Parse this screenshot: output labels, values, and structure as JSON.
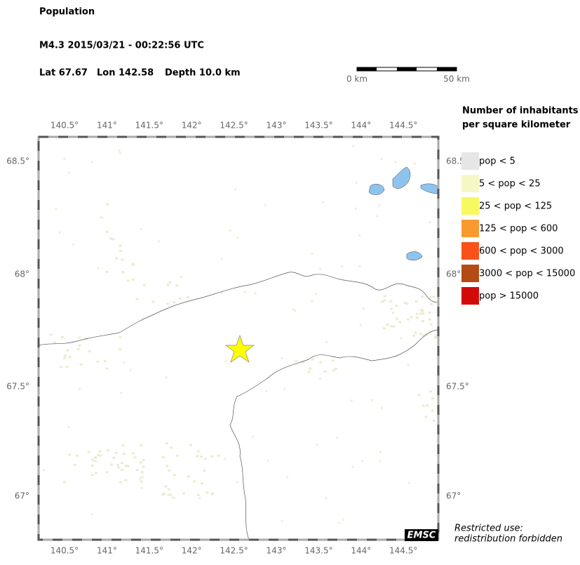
{
  "header": {
    "title": "Population",
    "event": "M4.3  2015/03/21 - 00:22:56 UTC",
    "lat": "Lat 67.67",
    "lon": "Lon 142.58",
    "depth": "Depth  10.0 km"
  },
  "scale_bar": {
    "start": "0 km",
    "end": "50 km"
  },
  "map": {
    "lon_ticks": [
      "140.5°",
      "141°",
      "141.5°",
      "142°",
      "142.5°",
      "143°",
      "143.5°",
      "144°",
      "144.5°"
    ],
    "lat_ticks": [
      "68.5°",
      "68°",
      "67.5°",
      "67°"
    ],
    "logo": "EMSC"
  },
  "legend": {
    "title_lines": [
      "Number of inhabitants",
      "per square kilometer"
    ],
    "items": [
      {
        "label": "pop < 5",
        "color": "#e6e6e6"
      },
      {
        "label": "5 < pop < 25",
        "color": "#f7f7c6"
      },
      {
        "label": "25 < pop < 125",
        "color": "#f8f860"
      },
      {
        "label": "125 < pop < 600",
        "color": "#f89a30"
      },
      {
        "label": "600 < pop < 3000",
        "color": "#f8521a"
      },
      {
        "label": "3000 < pop < 15000",
        "color": "#b44a14"
      },
      {
        "label": "pop > 15000",
        "color": "#d40a0a"
      }
    ]
  },
  "notice": {
    "lines": [
      "Restricted use:",
      "redistribution forbidden"
    ]
  }
}
